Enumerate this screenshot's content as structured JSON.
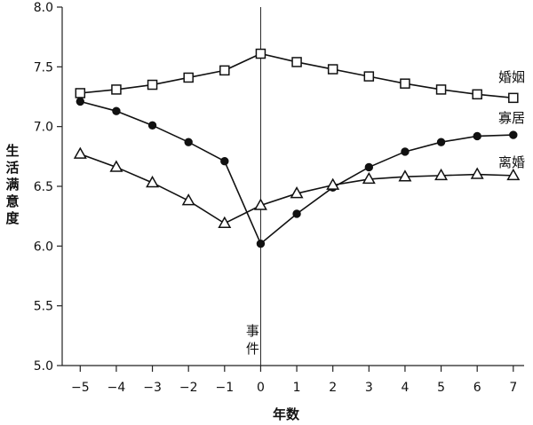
{
  "chart_data": {
    "type": "line",
    "xlabel": "年数",
    "ylabel": "生活满意度",
    "x": [
      -5,
      -4,
      -3,
      -2,
      -1,
      0,
      1,
      2,
      3,
      4,
      5,
      6,
      7
    ],
    "xticks": [
      "−5",
      "−4",
      "−3",
      "−2",
      "−1",
      "0",
      "1",
      "2",
      "3",
      "4",
      "5",
      "6",
      "7"
    ],
    "yticks": [
      "5.0",
      "5.5",
      "6.0",
      "6.5",
      "7.0",
      "7.5",
      "8.0"
    ],
    "ylim": [
      5.0,
      8.0
    ],
    "xlim": [
      -5.5,
      7.3
    ],
    "event_line_x": 0,
    "event_label": [
      "事",
      "件"
    ],
    "grid": false,
    "series": [
      {
        "name": "婚姻",
        "marker": "square",
        "values": [
          7.28,
          7.31,
          7.35,
          7.41,
          7.47,
          7.61,
          7.54,
          7.48,
          7.42,
          7.36,
          7.31,
          7.27,
          7.24
        ]
      },
      {
        "name": "寡居",
        "marker": "circle",
        "values": [
          7.21,
          7.13,
          7.01,
          6.87,
          6.71,
          6.02,
          6.27,
          6.49,
          6.66,
          6.79,
          6.87,
          6.92,
          6.93
        ]
      },
      {
        "name": "离婚",
        "marker": "triangle",
        "values": [
          6.77,
          6.66,
          6.53,
          6.38,
          6.19,
          6.34,
          6.44,
          6.51,
          6.56,
          6.58,
          6.59,
          6.6,
          6.59
        ]
      }
    ]
  }
}
